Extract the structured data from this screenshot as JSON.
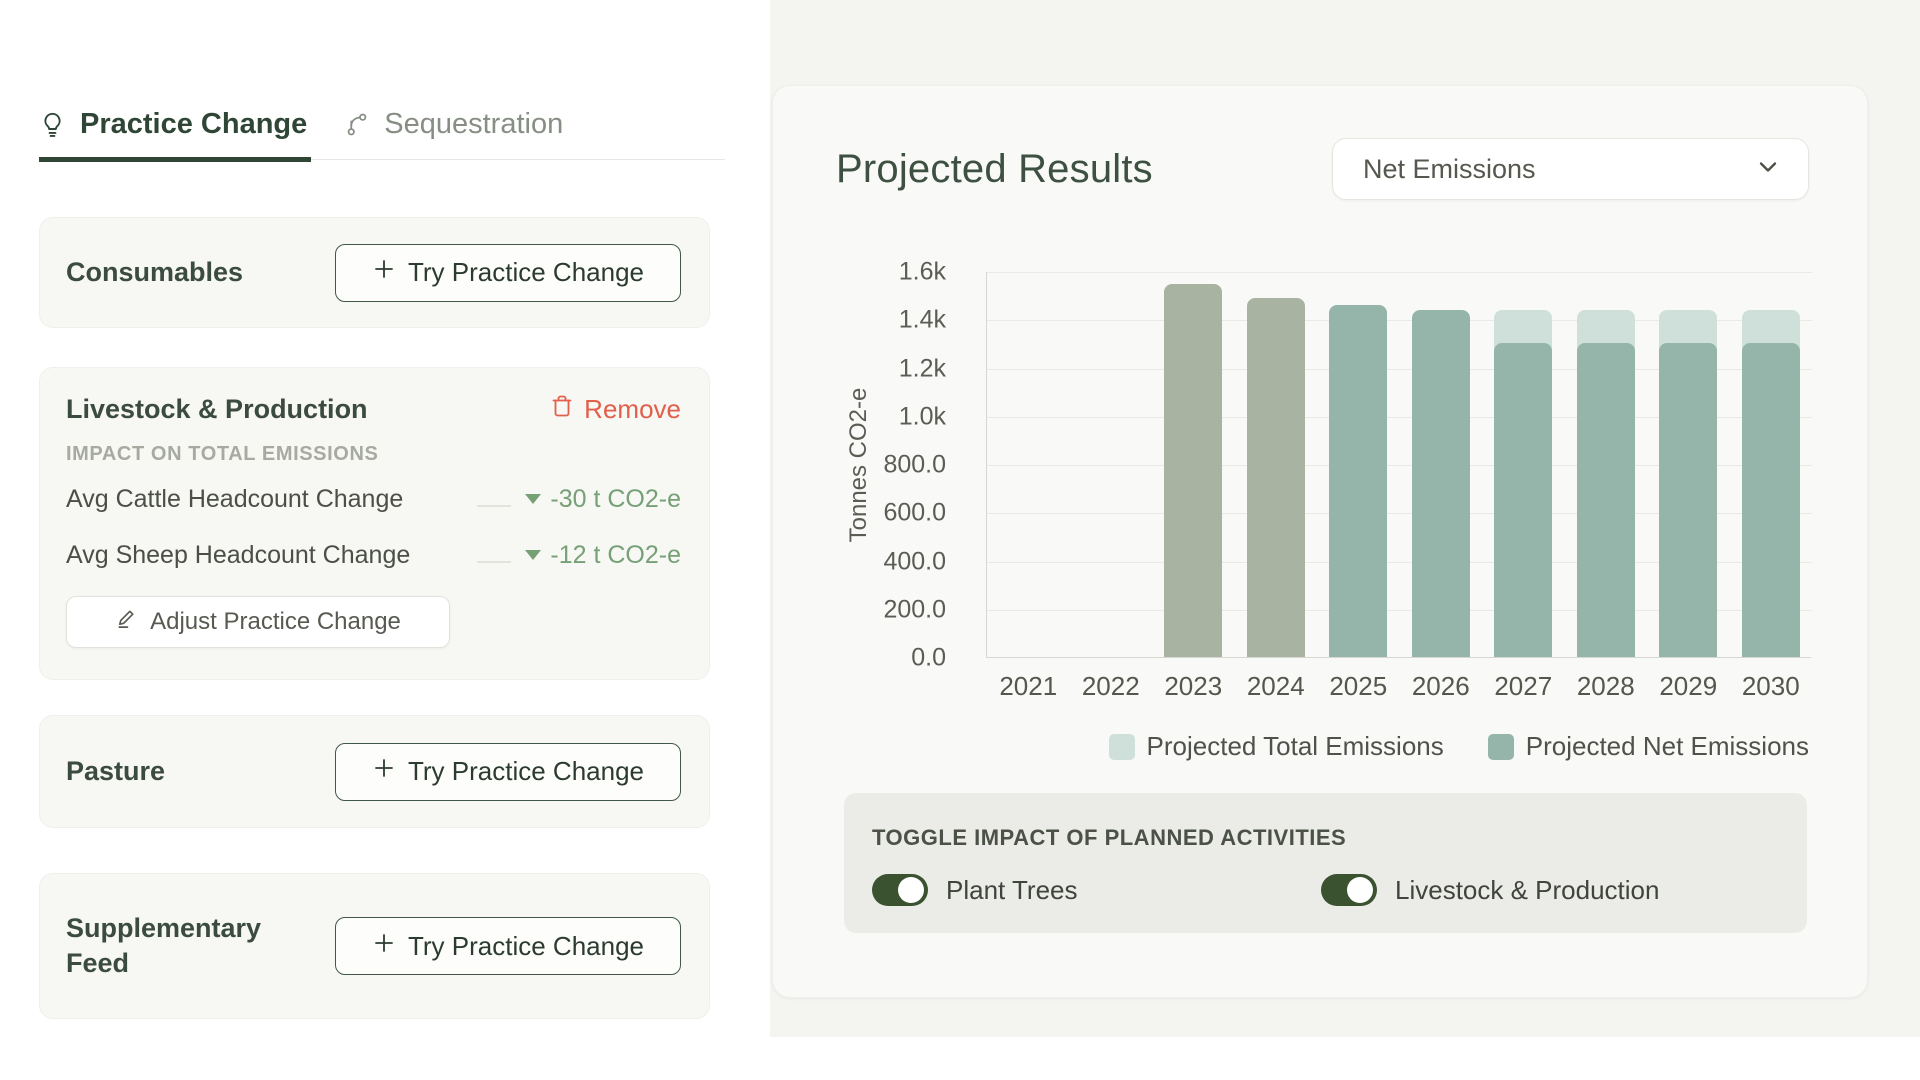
{
  "colors": {
    "accent_green": "#2f4636",
    "toggle_green": "#3a5230",
    "remove_red": "#e2604b",
    "value_green": "#76a076",
    "bar_sage": "#a9b3a2",
    "bar_teal": "#95b5ab",
    "bar_light_teal": "#cfe0da"
  },
  "tabs": {
    "items": [
      {
        "label": "Practice Change",
        "icon": "lightbulb-icon",
        "active": true
      },
      {
        "label": "Sequestration",
        "icon": "branch-icon",
        "active": false
      }
    ]
  },
  "practice_cards": {
    "try_button_label": "Try Practice Change",
    "simple": [
      {
        "title": "Consumables"
      },
      {
        "title": "Pasture"
      },
      {
        "title": "Supplementary Feed"
      }
    ],
    "livestock": {
      "title": "Livestock & Production",
      "remove_label": "Remove",
      "impact_label": "IMPACT ON TOTAL EMISSIONS",
      "metrics": [
        {
          "label": "Avg Cattle Headcount Change",
          "value": "-30 t CO2-e",
          "direction": "down"
        },
        {
          "label": "Avg Sheep Headcount Change",
          "value": "-12 t CO2-e",
          "direction": "down"
        }
      ],
      "adjust_button_label": "Adjust Practice Change"
    }
  },
  "results": {
    "title": "Projected Results",
    "dropdown": {
      "value": "Net Emissions"
    },
    "toggle_section": {
      "label": "TOGGLE IMPACT OF PLANNED ACTIVITIES",
      "toggles": [
        {
          "label": "Plant Trees",
          "on": true
        },
        {
          "label": "Livestock & Production",
          "on": true
        }
      ]
    }
  },
  "chart_data": {
    "type": "bar",
    "title": "Projected Results",
    "xlabel": "",
    "ylabel": "Tonnes CO2-e",
    "ylim": [
      0,
      1600
    ],
    "ytick_labels": [
      "0.0",
      "200.0",
      "400.0",
      "600.0",
      "800.0",
      "1.0k",
      "1.2k",
      "1.4k",
      "1.6k"
    ],
    "categories": [
      "2021",
      "2022",
      "2023",
      "2024",
      "2025",
      "2026",
      "2027",
      "2028",
      "2029",
      "2030"
    ],
    "series": [
      {
        "name": "Projected Total Emissions",
        "color": "#cfe0da",
        "values": [
          null,
          null,
          1545,
          1490,
          1460,
          1440,
          1440,
          1440,
          1440,
          1440
        ]
      },
      {
        "name": "Projected Net Emissions",
        "color": "#95b5ab",
        "values": [
          null,
          null,
          1545,
          1490,
          1460,
          1440,
          1300,
          1300,
          1300,
          1300
        ]
      }
    ],
    "historical_years": [
      "2023",
      "2024"
    ],
    "historical_bar_color": "#a9b3a2",
    "grid": true,
    "legend_position": "bottom"
  }
}
